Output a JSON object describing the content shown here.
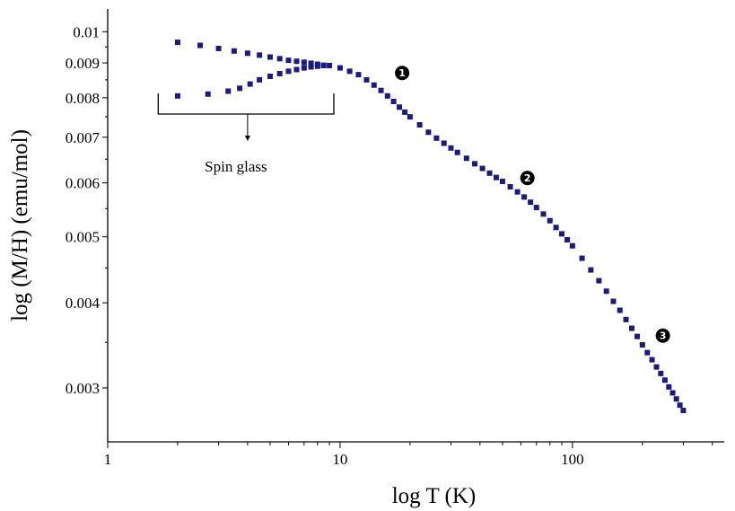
{
  "chart_data": {
    "type": "scatter",
    "xlabel": "log T (K)",
    "ylabel": "log (M/H) (emu/mol)",
    "xscale": "log",
    "yscale": "log",
    "xlim": [
      1,
      450
    ],
    "ylim": [
      0.0025,
      0.0108
    ],
    "xticks": [
      {
        "value": 1,
        "label": "1"
      },
      {
        "value": 10,
        "label": "10"
      },
      {
        "value": 100,
        "label": "100"
      }
    ],
    "yticks": [
      {
        "value": 0.003,
        "label": "0.003"
      },
      {
        "value": 0.004,
        "label": "0.004"
      },
      {
        "value": 0.005,
        "label": "0.005"
      },
      {
        "value": 0.006,
        "label": "0.006"
      },
      {
        "value": 0.007,
        "label": "0.007"
      },
      {
        "value": 0.008,
        "label": "0.008"
      },
      {
        "value": 0.009,
        "label": "0.009"
      },
      {
        "value": 0.01,
        "label": "0.01"
      }
    ],
    "grid": false,
    "marker_color": "#1a1a80",
    "series": [
      {
        "values": [
          [
            2.0,
            0.00965
          ],
          [
            2.5,
            0.00955
          ],
          [
            3.0,
            0.00945
          ],
          [
            3.5,
            0.00937
          ],
          [
            4.0,
            0.0093
          ],
          [
            4.5,
            0.00924
          ],
          [
            5.0,
            0.00918
          ],
          [
            5.5,
            0.00913
          ],
          [
            6.0,
            0.00908
          ],
          [
            6.5,
            0.00905
          ],
          [
            7.0,
            0.00902
          ],
          [
            7.5,
            0.00899
          ],
          [
            8.0,
            0.00896
          ],
          [
            8.5,
            0.00893
          ]
        ]
      },
      {
        "values": [
          [
            2.0,
            0.00805
          ],
          [
            2.7,
            0.0081
          ],
          [
            3.3,
            0.00818
          ],
          [
            3.7,
            0.00826
          ],
          [
            4.1,
            0.00838
          ],
          [
            4.5,
            0.0085
          ],
          [
            5.0,
            0.0086
          ],
          [
            5.5,
            0.00868
          ],
          [
            6.0,
            0.00875
          ],
          [
            6.5,
            0.0088
          ],
          [
            7.0,
            0.00885
          ],
          [
            7.5,
            0.00888
          ],
          [
            8.0,
            0.0089
          ],
          [
            8.5,
            0.00892
          ]
        ]
      },
      {
        "values": [
          [
            9.0,
            0.00892
          ],
          [
            10.0,
            0.00885
          ],
          [
            11.0,
            0.00875
          ],
          [
            12.0,
            0.00865
          ],
          [
            13.0,
            0.0085
          ],
          [
            14.0,
            0.00835
          ],
          [
            15.0,
            0.0082
          ],
          [
            16.0,
            0.00805
          ],
          [
            17.0,
            0.0079
          ],
          [
            18.0,
            0.00775
          ],
          [
            19.0,
            0.00762
          ],
          [
            20.0,
            0.0075
          ],
          [
            22.0,
            0.0073
          ],
          [
            24.0,
            0.00712
          ],
          [
            26.0,
            0.00698
          ],
          [
            28.0,
            0.00686
          ],
          [
            30.0,
            0.00675
          ],
          [
            32.0,
            0.00665
          ],
          [
            35.0,
            0.00652
          ],
          [
            38.0,
            0.0064
          ],
          [
            41.0,
            0.0063
          ],
          [
            44.0,
            0.0062
          ],
          [
            47.0,
            0.00611
          ],
          [
            50.0,
            0.00603
          ],
          [
            54.0,
            0.00592
          ],
          [
            58.0,
            0.00582
          ],
          [
            62.0,
            0.00572
          ],
          [
            66.0,
            0.00562
          ],
          [
            70.0,
            0.00552
          ],
          [
            75.0,
            0.0054
          ],
          [
            80.0,
            0.00528
          ],
          [
            85.0,
            0.00516
          ],
          [
            90.0,
            0.00505
          ],
          [
            95.0,
            0.00495
          ],
          [
            100.0,
            0.00485
          ],
          [
            110.0,
            0.00465
          ],
          [
            120.0,
            0.00447
          ],
          [
            130.0,
            0.00431
          ],
          [
            140.0,
            0.00416
          ],
          [
            150.0,
            0.00402
          ],
          [
            160.0,
            0.0039
          ],
          [
            170.0,
            0.00378
          ],
          [
            180.0,
            0.00367
          ],
          [
            190.0,
            0.00357
          ],
          [
            200.0,
            0.00347
          ],
          [
            210.0,
            0.00338
          ],
          [
            220.0,
            0.0033
          ],
          [
            230.0,
            0.00322
          ],
          [
            240.0,
            0.00315
          ],
          [
            250.0,
            0.00308
          ],
          [
            260.0,
            0.00301
          ],
          [
            270.0,
            0.00295
          ],
          [
            280.0,
            0.00289
          ],
          [
            290.0,
            0.00283
          ],
          [
            300.0,
            0.00278
          ]
        ]
      }
    ],
    "annotations": [
      {
        "text": "Spin glass",
        "x": 4.0,
        "y": 0.0066,
        "type": "bracket",
        "x_from": 1.65,
        "x_to": 9.4
      },
      {
        "text": "1",
        "x": 18.5,
        "y": 0.0087,
        "type": "circled-number"
      },
      {
        "text": "2",
        "x": 64.0,
        "y": 0.0061,
        "type": "circled-number"
      },
      {
        "text": "3",
        "x": 245.0,
        "y": 0.00358,
        "type": "circled-number"
      }
    ]
  }
}
